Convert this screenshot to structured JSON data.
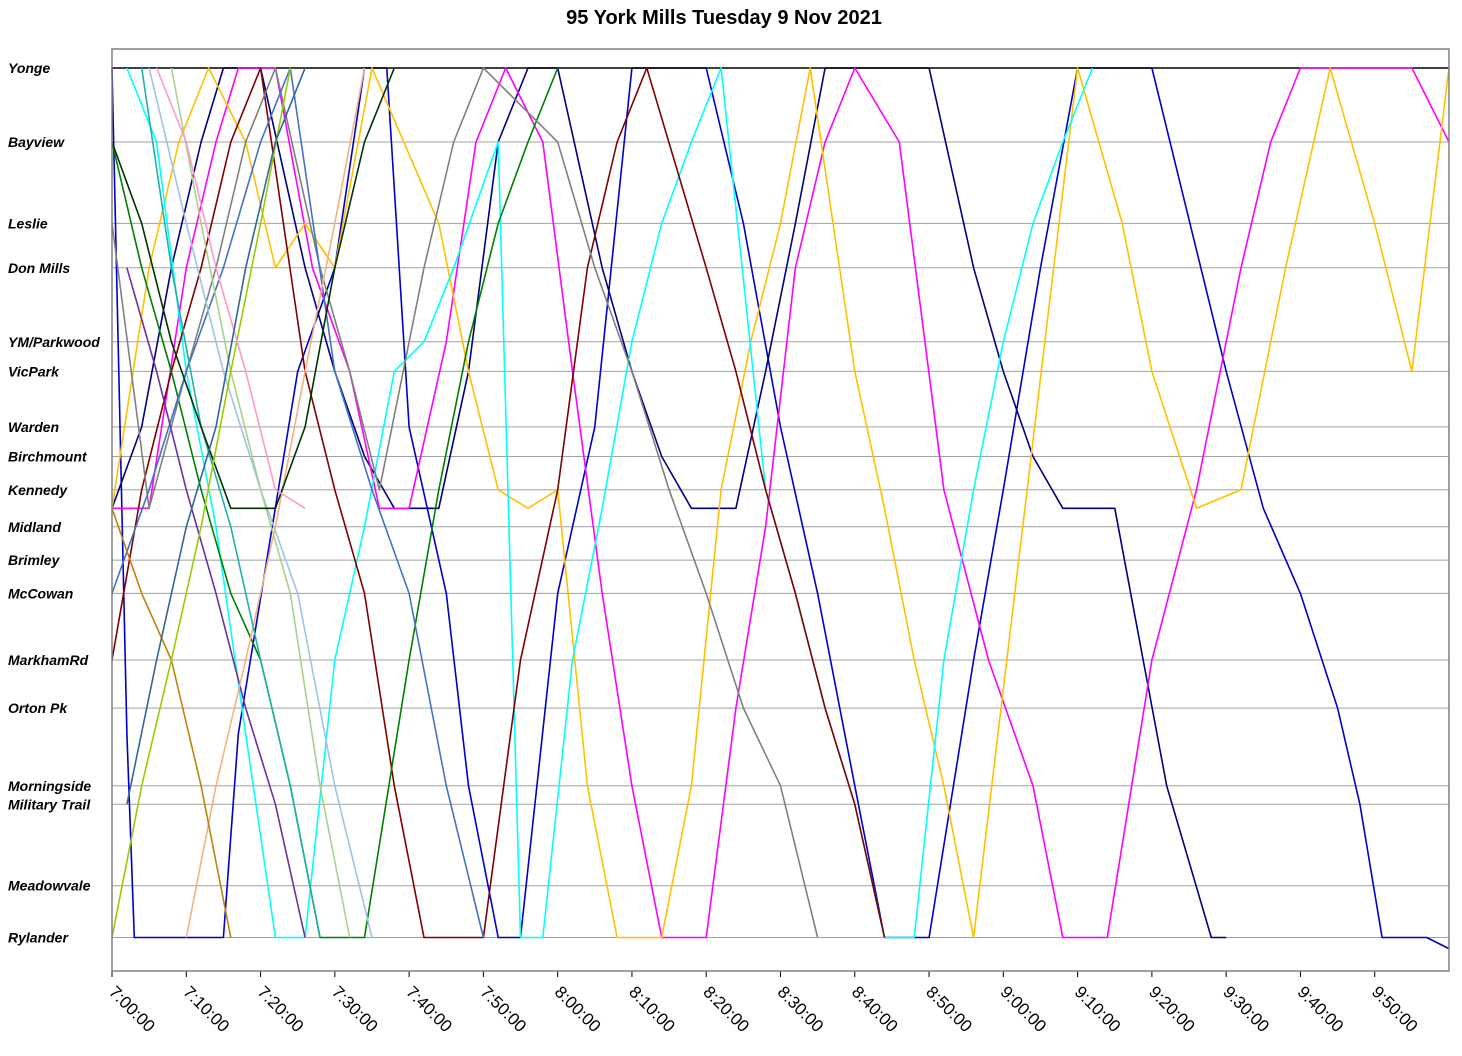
{
  "chart_data": {
    "type": "line",
    "title": "95 York Mills Tuesday 9 Nov 2021",
    "xlabel": "",
    "ylabel": "",
    "x_ticks": [
      "7:00:00",
      "7:10:00",
      "7:20:00",
      "7:30:00",
      "7:40:00",
      "7:50:00",
      "8:00:00",
      "8:10:00",
      "8:20:00",
      "8:30:00",
      "8:40:00",
      "8:50:00",
      "9:00:00",
      "9:10:00",
      "9:20:00",
      "9:30:00",
      "9:40:00",
      "9:50:00"
    ],
    "xlim_minutes": [
      0,
      180
    ],
    "y_axis_unit": "km_from_Yonge",
    "ylim": [
      0,
      24
    ],
    "grid": true,
    "legend": "none",
    "stops": [
      {
        "name": "Yonge",
        "pos": 0.0
      },
      {
        "name": "Bayview",
        "pos": 2.0
      },
      {
        "name": "Leslie",
        "pos": 4.2
      },
      {
        "name": "Don Mills",
        "pos": 5.4
      },
      {
        "name": "YM/Parkwood",
        "pos": 7.4
      },
      {
        "name": "VicPark",
        "pos": 8.2
      },
      {
        "name": "Warden",
        "pos": 9.7
      },
      {
        "name": "Birchmount",
        "pos": 10.5
      },
      {
        "name": "Kennedy",
        "pos": 11.4
      },
      {
        "name": "Midland",
        "pos": 12.4
      },
      {
        "name": "Brimley",
        "pos": 13.3
      },
      {
        "name": "McCowan",
        "pos": 14.2
      },
      {
        "name": "MarkhamRd",
        "pos": 16.0
      },
      {
        "name": "Orton Pk",
        "pos": 17.3
      },
      {
        "name": "Morningside",
        "pos": 19.4
      },
      {
        "name": "Military Trail",
        "pos": 19.9
      },
      {
        "name": "Meadowvale",
        "pos": 22.1
      },
      {
        "name": "Rylander",
        "pos": 23.5
      }
    ],
    "series": [
      {
        "color": "#0000cc",
        "trips": [
          [
            -2,
            0,
            2,
            18,
            3,
            23.5,
            15,
            23.5,
            17,
            18,
            25,
            8.2,
            30,
            5.4,
            34,
            0,
            37,
            0,
            40,
            9.7,
            45,
            14.2,
            48,
            19.4,
            52,
            23.5,
            55,
            23.5,
            60,
            14.2,
            65,
            9.7,
            70,
            0,
            80,
            0,
            85,
            4.2,
            90,
            9.7,
            95,
            14.2,
            100,
            19.4,
            104,
            23.5,
            110,
            23.5,
            116,
            16,
            120,
            11.4,
            125,
            5.4,
            130,
            0,
            140,
            0,
            150,
            8.2,
            155,
            11.9,
            160,
            14.2,
            165,
            17.3,
            168,
            19.9,
            171,
            23.5,
            177,
            23.5,
            180,
            23.8
          ]
        ]
      },
      {
        "color": "#000080",
        "trips": [
          [
            0,
            11.9,
            4,
            9.7,
            8,
            5.4,
            12,
            2,
            15,
            0,
            20,
            0,
            26,
            5.4,
            30,
            8.2,
            34,
            10.5,
            38,
            11.9,
            44,
            11.9,
            48,
            8.2,
            52,
            2,
            56,
            0,
            60,
            0,
            66,
            5.4,
            70,
            8.2,
            74,
            10.5,
            78,
            11.9,
            84,
            11.9,
            88,
            8.2,
            92,
            4.2,
            96,
            0,
            110,
            0,
            116,
            5.4,
            120,
            8.2,
            124,
            10.5,
            128,
            11.9,
            135,
            11.9,
            142,
            19.4,
            148,
            23.5,
            150,
            23.5
          ]
        ]
      },
      {
        "color": "#000000",
        "trips": [
          [
            0,
            0,
            180,
            0
          ]
        ]
      },
      {
        "color": "#ff00ff",
        "trips": [
          [
            0,
            11.9,
            5,
            11.9,
            10,
            5.4,
            14,
            2,
            17,
            0,
            22,
            0,
            27,
            5.4,
            32,
            8.2,
            36,
            11.9,
            40,
            11.9,
            45,
            7.4,
            49,
            2,
            53,
            0,
            58,
            2,
            62,
            8.2,
            66,
            14.2,
            70,
            19.4,
            74,
            23.5,
            80,
            23.5,
            84,
            17.3,
            88,
            12.4,
            92,
            5.4,
            96,
            2,
            100,
            0,
            106,
            2,
            112,
            11.4,
            118,
            16,
            124,
            19.4,
            128,
            23.5,
            134,
            23.5,
            140,
            16,
            146,
            11.4,
            152,
            5.4,
            156,
            2,
            160,
            0,
            175,
            0,
            180,
            2
          ]
        ]
      },
      {
        "color": "#ffc000",
        "trips": [
          [
            0,
            11.9,
            5,
            5.4,
            9,
            2,
            13,
            0,
            18,
            2,
            22,
            5.4,
            26,
            4.2,
            30,
            5.4,
            35,
            0,
            44,
            4.2,
            48,
            8.2,
            52,
            11.4,
            56,
            11.9,
            60,
            11.4,
            64,
            19.4,
            68,
            23.5,
            74,
            23.5,
            78,
            19.4,
            82,
            11.4,
            86,
            7.4,
            90,
            4.2,
            94,
            0,
            100,
            8.2,
            104,
            11.9,
            108,
            16,
            112,
            19.4,
            116,
            23.5,
            130,
            0,
            136,
            4.2,
            140,
            8.2,
            146,
            11.9,
            152,
            11.4,
            158,
            5.4,
            164,
            0,
            170,
            4.2,
            175,
            8.2,
            180,
            0
          ]
        ]
      },
      {
        "color": "#00ffff",
        "trips": [
          [
            2,
            0,
            6,
            2,
            10,
            8.2,
            14,
            12.4,
            18,
            18,
            22,
            23.5,
            26,
            23.5,
            30,
            16,
            34,
            12.4,
            38,
            8.2,
            42,
            7.4,
            46,
            5.4,
            52,
            2,
            55,
            23.5,
            58,
            23.5,
            62,
            16,
            66,
            11.9,
            70,
            7.4,
            74,
            4.2,
            78,
            2,
            82,
            0,
            88,
            11.4,
            92,
            14.2,
            96,
            17.3,
            100,
            19.9,
            104,
            23.5,
            108,
            23.5,
            112,
            16,
            116,
            11.4,
            120,
            7.4,
            124,
            4.2,
            128,
            2,
            132,
            0
          ]
        ]
      },
      {
        "color": "#800000",
        "trips": [
          [
            0,
            16,
            4,
            11.4,
            8,
            8.2,
            12,
            5.4,
            16,
            2,
            20,
            0,
            26,
            8.2,
            30,
            11.4,
            34,
            14.2,
            38,
            19.4,
            42,
            23.5,
            50,
            23.5,
            55,
            16,
            60,
            11.4,
            64,
            5.4,
            68,
            2,
            72,
            0,
            80,
            5.4,
            84,
            8.2,
            88,
            11.4,
            92,
            14.2,
            96,
            17.3,
            100,
            19.9,
            104,
            23.5
          ]
        ]
      },
      {
        "color": "#008000",
        "trips": [
          [
            0,
            2,
            4,
            5.4,
            8,
            8.2,
            12,
            11.4,
            16,
            14.2,
            20,
            16,
            24,
            19.4,
            28,
            23.5,
            34,
            23.5,
            40,
            16,
            44,
            11.4,
            48,
            7.4,
            52,
            4.2,
            56,
            2,
            60,
            0
          ]
        ]
      },
      {
        "color": "#808080",
        "trips": [
          [
            0,
            4.2,
            5,
            11.9,
            10,
            8.2,
            14,
            5.4,
            18,
            2,
            22,
            0,
            28,
            5.4,
            32,
            8.2,
            36,
            11.4,
            42,
            5.4,
            46,
            2,
            50,
            0,
            60,
            2,
            65,
            5.4,
            70,
            8.2,
            75,
            11.4,
            80,
            14.2,
            85,
            17.3,
            90,
            19.4,
            95,
            23.5
          ]
        ]
      },
      {
        "color": "#4472c4",
        "trips": [
          [
            0,
            14.2,
            5,
            11.4,
            10,
            8.2,
            15,
            5.4,
            20,
            2,
            24,
            0,
            30,
            8.2,
            35,
            11.4,
            40,
            14.2,
            45,
            19.4,
            50,
            23.5
          ]
        ]
      },
      {
        "color": "#9dc3e6",
        "trips": [
          [
            5,
            0,
            10,
            4.2,
            15,
            8.2,
            20,
            11.4,
            25,
            14.2,
            30,
            19.4,
            35,
            23.5
          ]
        ]
      },
      {
        "color": "#7030a0",
        "trips": [
          [
            2,
            5.4,
            6,
            8.2,
            10,
            11.4,
            14,
            14.2,
            18,
            17.3,
            22,
            19.9,
            26,
            23.5
          ]
        ]
      },
      {
        "color": "#f4b183",
        "trips": [
          [
            10,
            23.5,
            14,
            19.4,
            18,
            16,
            22,
            12.4,
            26,
            8.2,
            30,
            4.2,
            34,
            0
          ]
        ]
      },
      {
        "color": "#a9d18e",
        "trips": [
          [
            8,
            0,
            12,
            4.2,
            16,
            8.2,
            20,
            11.4,
            24,
            14.2,
            28,
            19.4,
            32,
            23.5
          ]
        ]
      },
      {
        "color": "#b8860b",
        "trips": [
          [
            0,
            11.9,
            4,
            14.2,
            8,
            16,
            12,
            19.4,
            16,
            23.5
          ]
        ]
      },
      {
        "color": "#20b2aa",
        "trips": [
          [
            4,
            0,
            8,
            5.4,
            12,
            9.7,
            16,
            12.4,
            20,
            16,
            24,
            19.4,
            28,
            23.5
          ]
        ]
      },
      {
        "color": "#003300",
        "trips": [
          [
            0,
            2,
            4,
            4.2,
            8,
            7.4,
            12,
            9.7,
            16,
            11.9,
            22,
            11.9,
            26,
            9.7,
            30,
            5.4,
            34,
            2,
            38,
            0
          ]
        ]
      },
      {
        "color": "#99cc00",
        "trips": [
          [
            0,
            23.5,
            4,
            19.4,
            8,
            16,
            12,
            12.4,
            16,
            8.2,
            20,
            4.2,
            24,
            0
          ]
        ]
      },
      {
        "color": "#ff99cc",
        "trips": [
          [
            6,
            0,
            10,
            2,
            14,
            5.4,
            18,
            8.2,
            22,
            11.4,
            26,
            11.9
          ]
        ]
      },
      {
        "color": "#336699",
        "trips": [
          [
            2,
            19.9,
            6,
            16,
            10,
            12.4,
            14,
            9.7,
            18,
            5.4,
            22,
            2,
            26,
            0
          ]
        ]
      }
    ]
  }
}
